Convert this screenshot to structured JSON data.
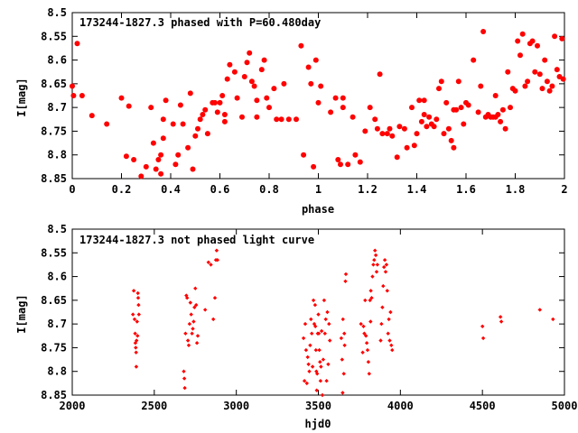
{
  "colors": {
    "points": "#ff0000",
    "frame": "#000000",
    "background": "#ffffff"
  },
  "chart_data": [
    {
      "type": "scatter",
      "title": "173244-1827.3 phased with P=60.480day",
      "xlabel": "phase",
      "ylabel": "I[mag]",
      "xlim": [
        0,
        2
      ],
      "ylim": [
        8.5,
        8.85
      ],
      "y_inverted": true,
      "grid": false,
      "x_ticks": [
        "0",
        "0.2",
        "0.4",
        "0.6",
        "0.8",
        "1",
        "1.2",
        "1.4",
        "1.6",
        "1.8",
        "2"
      ],
      "y_ticks": [
        "8.5",
        "8.55",
        "8.6",
        "8.65",
        "8.7",
        "8.75",
        "8.8",
        "8.85"
      ],
      "marker": "filled-dot",
      "points": [
        [
          0.0,
          8.655
        ],
        [
          0.005,
          8.675
        ],
        [
          0.02,
          8.565
        ],
        [
          0.04,
          8.675
        ],
        [
          0.08,
          8.717
        ],
        [
          0.14,
          8.735
        ],
        [
          0.2,
          8.68
        ],
        [
          0.22,
          8.803
        ],
        [
          0.23,
          8.697
        ],
        [
          0.25,
          8.81
        ],
        [
          0.28,
          8.845
        ],
        [
          0.3,
          8.825
        ],
        [
          0.32,
          8.7
        ],
        [
          0.33,
          8.775
        ],
        [
          0.34,
          8.83
        ],
        [
          0.35,
          8.81
        ],
        [
          0.36,
          8.84
        ],
        [
          0.36,
          8.8
        ],
        [
          0.37,
          8.725
        ],
        [
          0.37,
          8.765
        ],
        [
          0.38,
          8.685
        ],
        [
          0.41,
          8.735
        ],
        [
          0.42,
          8.82
        ],
        [
          0.43,
          8.8
        ],
        [
          0.44,
          8.695
        ],
        [
          0.45,
          8.735
        ],
        [
          0.47,
          8.785
        ],
        [
          0.48,
          8.67
        ],
        [
          0.49,
          8.83
        ],
        [
          0.5,
          8.76
        ],
        [
          0.51,
          8.745
        ],
        [
          0.52,
          8.725
        ],
        [
          0.53,
          8.715
        ],
        [
          0.54,
          8.705
        ],
        [
          0.55,
          8.755
        ],
        [
          0.57,
          8.69
        ],
        [
          0.58,
          8.69
        ],
        [
          0.59,
          8.71
        ],
        [
          0.6,
          8.69
        ],
        [
          0.61,
          8.675
        ],
        [
          0.62,
          8.73
        ],
        [
          0.62,
          8.715
        ],
        [
          0.63,
          8.64
        ],
        [
          0.64,
          8.61
        ],
        [
          0.66,
          8.625
        ],
        [
          0.67,
          8.68
        ],
        [
          0.69,
          8.72
        ],
        [
          0.7,
          8.635
        ],
        [
          0.71,
          8.605
        ],
        [
          0.72,
          8.585
        ],
        [
          0.73,
          8.645
        ],
        [
          0.74,
          8.655
        ],
        [
          0.75,
          8.685
        ],
        [
          0.75,
          8.72
        ],
        [
          0.77,
          8.62
        ],
        [
          0.78,
          8.6
        ],
        [
          0.79,
          8.68
        ],
        [
          0.8,
          8.7
        ],
        [
          0.82,
          8.66
        ],
        [
          0.83,
          8.725
        ],
        [
          0.85,
          8.725
        ],
        [
          0.86,
          8.65
        ],
        [
          0.88,
          8.725
        ],
        [
          0.91,
          8.725
        ],
        [
          0.93,
          8.57
        ],
        [
          0.94,
          8.8
        ],
        [
          0.96,
          8.615
        ],
        [
          0.97,
          8.65
        ],
        [
          0.98,
          8.825
        ],
        [
          0.99,
          8.6
        ],
        [
          1.0,
          8.69
        ],
        [
          1.01,
          8.655
        ],
        [
          1.05,
          8.71
        ],
        [
          1.07,
          8.68
        ],
        [
          1.08,
          8.81
        ],
        [
          1.09,
          8.82
        ],
        [
          1.1,
          8.7
        ],
        [
          1.1,
          8.68
        ],
        [
          1.12,
          8.82
        ],
        [
          1.14,
          8.72
        ],
        [
          1.15,
          8.8
        ],
        [
          1.17,
          8.815
        ],
        [
          1.19,
          8.75
        ],
        [
          1.21,
          8.7
        ],
        [
          1.23,
          8.725
        ],
        [
          1.24,
          8.745
        ],
        [
          1.25,
          8.63
        ],
        [
          1.26,
          8.755
        ],
        [
          1.28,
          8.755
        ],
        [
          1.29,
          8.745
        ],
        [
          1.3,
          8.76
        ],
        [
          1.32,
          8.805
        ],
        [
          1.33,
          8.74
        ],
        [
          1.35,
          8.745
        ],
        [
          1.36,
          8.785
        ],
        [
          1.38,
          8.7
        ],
        [
          1.39,
          8.78
        ],
        [
          1.4,
          8.755
        ],
        [
          1.41,
          8.685
        ],
        [
          1.42,
          8.73
        ],
        [
          1.43,
          8.715
        ],
        [
          1.43,
          8.685
        ],
        [
          1.44,
          8.74
        ],
        [
          1.45,
          8.72
        ],
        [
          1.46,
          8.735
        ],
        [
          1.47,
          8.74
        ],
        [
          1.48,
          8.725
        ],
        [
          1.49,
          8.66
        ],
        [
          1.5,
          8.645
        ],
        [
          1.51,
          8.755
        ],
        [
          1.52,
          8.69
        ],
        [
          1.53,
          8.745
        ],
        [
          1.54,
          8.77
        ],
        [
          1.55,
          8.785
        ],
        [
          1.55,
          8.705
        ],
        [
          1.56,
          8.705
        ],
        [
          1.57,
          8.645
        ],
        [
          1.58,
          8.7
        ],
        [
          1.59,
          8.735
        ],
        [
          1.6,
          8.69
        ],
        [
          1.61,
          8.695
        ],
        [
          1.63,
          8.6
        ],
        [
          1.65,
          8.71
        ],
        [
          1.66,
          8.655
        ],
        [
          1.67,
          8.54
        ],
        [
          1.68,
          8.72
        ],
        [
          1.69,
          8.715
        ],
        [
          1.7,
          8.72
        ],
        [
          1.71,
          8.72
        ],
        [
          1.72,
          8.72
        ],
        [
          1.72,
          8.675
        ],
        [
          1.73,
          8.715
        ],
        [
          1.74,
          8.73
        ],
        [
          1.75,
          8.705
        ],
        [
          1.76,
          8.745
        ],
        [
          1.77,
          8.625
        ],
        [
          1.78,
          8.7
        ],
        [
          1.79,
          8.66
        ],
        [
          1.8,
          8.665
        ],
        [
          1.81,
          8.56
        ],
        [
          1.82,
          8.59
        ],
        [
          1.83,
          8.545
        ],
        [
          1.84,
          8.655
        ],
        [
          1.85,
          8.645
        ],
        [
          1.86,
          8.565
        ],
        [
          1.87,
          8.56
        ],
        [
          1.88,
          8.625
        ],
        [
          1.89,
          8.57
        ],
        [
          1.9,
          8.63
        ],
        [
          1.91,
          8.66
        ],
        [
          1.92,
          8.6
        ],
        [
          1.93,
          8.645
        ],
        [
          1.94,
          8.665
        ],
        [
          1.95,
          8.655
        ],
        [
          1.96,
          8.55
        ],
        [
          1.97,
          8.62
        ],
        [
          1.98,
          8.635
        ],
        [
          1.99,
          8.555
        ],
        [
          1.995,
          8.64
        ]
      ]
    },
    {
      "type": "scatter",
      "title": "173244-1827.3 not phased light curve",
      "xlabel": "hjd0",
      "ylabel": "I[mag]",
      "xlim": [
        2000,
        5000
      ],
      "ylim": [
        8.5,
        8.85
      ],
      "y_inverted": true,
      "grid": false,
      "x_ticks": [
        "2000",
        "2500",
        "3000",
        "3500",
        "4000",
        "4500",
        "5000"
      ],
      "y_ticks": [
        "8.5",
        "8.55",
        "8.6",
        "8.65",
        "8.7",
        "8.75",
        "8.8",
        "8.85"
      ],
      "marker": "small-diamond",
      "points": [
        [
          2370,
          8.68
        ],
        [
          2375,
          8.63
        ],
        [
          2380,
          8.69
        ],
        [
          2383,
          8.72
        ],
        [
          2385,
          8.74
        ],
        [
          2387,
          8.75
        ],
        [
          2389,
          8.76
        ],
        [
          2390,
          8.79
        ],
        [
          2392,
          8.735
        ],
        [
          2395,
          8.695
        ],
        [
          2398,
          8.725
        ],
        [
          2400,
          8.635
        ],
        [
          2402,
          8.645
        ],
        [
          2404,
          8.66
        ],
        [
          2406,
          8.68
        ],
        [
          2680,
          8.8
        ],
        [
          2683,
          8.815
        ],
        [
          2686,
          8.835
        ],
        [
          2690,
          8.72
        ],
        [
          2695,
          8.64
        ],
        [
          2700,
          8.645
        ],
        [
          2705,
          8.735
        ],
        [
          2710,
          8.745
        ],
        [
          2715,
          8.7
        ],
        [
          2720,
          8.655
        ],
        [
          2725,
          8.68
        ],
        [
          2730,
          8.72
        ],
        [
          2735,
          8.71
        ],
        [
          2740,
          8.695
        ],
        [
          2745,
          8.665
        ],
        [
          2750,
          8.625
        ],
        [
          2755,
          8.66
        ],
        [
          2760,
          8.74
        ],
        [
          2765,
          8.725
        ],
        [
          2810,
          8.67
        ],
        [
          2830,
          8.57
        ],
        [
          2845,
          8.575
        ],
        [
          2860,
          8.69
        ],
        [
          2870,
          8.645
        ],
        [
          2875,
          8.565
        ],
        [
          2880,
          8.545
        ],
        [
          2885,
          8.565
        ],
        [
          3410,
          8.73
        ],
        [
          3415,
          8.82
        ],
        [
          3420,
          8.7
        ],
        [
          3425,
          8.755
        ],
        [
          3430,
          8.825
        ],
        [
          3435,
          8.77
        ],
        [
          3440,
          8.785
        ],
        [
          3445,
          8.8
        ],
        [
          3450,
          8.745
        ],
        [
          3455,
          8.69
        ],
        [
          3460,
          8.72
        ],
        [
          3465,
          8.79
        ],
        [
          3470,
          8.65
        ],
        [
          3475,
          8.7
        ],
        [
          3480,
          8.66
        ],
        [
          3482,
          8.705
        ],
        [
          3485,
          8.755
        ],
        [
          3488,
          8.8
        ],
        [
          3490,
          8.84
        ],
        [
          3493,
          8.805
        ],
        [
          3496,
          8.72
        ],
        [
          3500,
          8.68
        ],
        [
          3503,
          8.72
        ],
        [
          3506,
          8.755
        ],
        [
          3510,
          8.78
        ],
        [
          3513,
          8.82
        ],
        [
          3516,
          8.79
        ],
        [
          3520,
          8.715
        ],
        [
          3525,
          8.85
        ],
        [
          3530,
          8.775
        ],
        [
          3535,
          8.65
        ],
        [
          3540,
          8.72
        ],
        [
          3545,
          8.69
        ],
        [
          3550,
          8.82
        ],
        [
          3555,
          8.675
        ],
        [
          3560,
          8.785
        ],
        [
          3565,
          8.7
        ],
        [
          3570,
          8.735
        ],
        [
          3640,
          8.73
        ],
        [
          3645,
          8.775
        ],
        [
          3648,
          8.845
        ],
        [
          3650,
          8.69
        ],
        [
          3655,
          8.805
        ],
        [
          3658,
          8.72
        ],
        [
          3660,
          8.745
        ],
        [
          3665,
          8.61
        ],
        [
          3668,
          8.595
        ],
        [
          3760,
          8.7
        ],
        [
          3770,
          8.76
        ],
        [
          3775,
          8.705
        ],
        [
          3780,
          8.72
        ],
        [
          3785,
          8.65
        ],
        [
          3790,
          8.725
        ],
        [
          3795,
          8.74
        ],
        [
          3800,
          8.755
        ],
        [
          3805,
          8.78
        ],
        [
          3810,
          8.805
        ],
        [
          3815,
          8.65
        ],
        [
          3818,
          8.695
        ],
        [
          3820,
          8.63
        ],
        [
          3825,
          8.645
        ],
        [
          3830,
          8.6
        ],
        [
          3835,
          8.575
        ],
        [
          3840,
          8.565
        ],
        [
          3845,
          8.545
        ],
        [
          3850,
          8.555
        ],
        [
          3855,
          8.59
        ],
        [
          3860,
          8.575
        ],
        [
          3880,
          8.735
        ],
        [
          3885,
          8.7
        ],
        [
          3890,
          8.665
        ],
        [
          3895,
          8.62
        ],
        [
          3900,
          8.58
        ],
        [
          3905,
          8.565
        ],
        [
          3910,
          8.59
        ],
        [
          3915,
          8.575
        ],
        [
          3920,
          8.63
        ],
        [
          3925,
          8.72
        ],
        [
          3930,
          8.69
        ],
        [
          3935,
          8.735
        ],
        [
          3940,
          8.675
        ],
        [
          3945,
          8.745
        ],
        [
          3950,
          8.755
        ],
        [
          4500,
          8.705
        ],
        [
          4505,
          8.73
        ],
        [
          4610,
          8.685
        ],
        [
          4615,
          8.695
        ],
        [
          4850,
          8.67
        ],
        [
          4930,
          8.69
        ]
      ]
    }
  ]
}
